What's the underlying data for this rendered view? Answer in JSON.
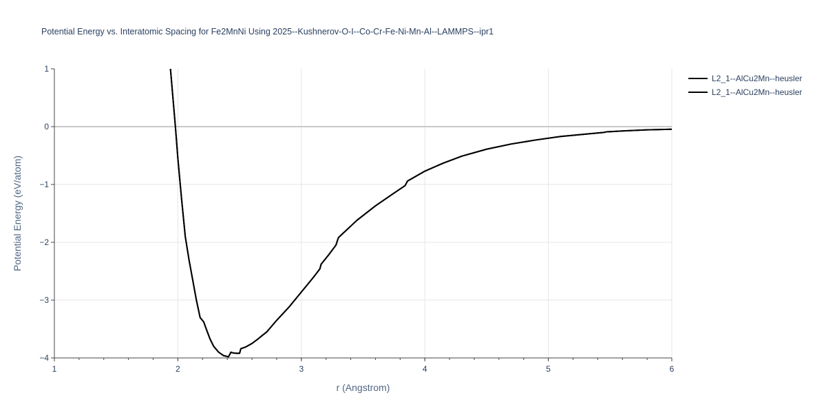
{
  "chart_data": {
    "type": "line",
    "title": "Potential Energy vs. Interatomic Spacing for Fe2MnNi Using 2025--Kushnerov-O-I--Co-Cr-Fe-Ni-Mn-Al--LAMMPS--ipr1",
    "xlabel": "r (Angstrom)",
    "ylabel": "Potential Energy (eV/atom)",
    "xlim": [
      1,
      6
    ],
    "ylim": [
      -4,
      1
    ],
    "x_ticks": [
      "1",
      "2",
      "3",
      "4",
      "5",
      "6"
    ],
    "y_ticks": [
      "1",
      "0",
      "−1",
      "−2",
      "−3",
      "−4"
    ],
    "grid": true,
    "legend_position": "top-right",
    "colors": {
      "line": "#000000",
      "grid": "#e5e5e5",
      "zeroline": "#c8c8c8",
      "axis_text": "#2a3f5f"
    },
    "series": [
      {
        "name": "L2_1--AlCu2Mn--heusler",
        "x": [
          1.94,
          1.96,
          1.98,
          2.0,
          2.03,
          2.06,
          2.09,
          2.12,
          2.15,
          2.18,
          2.21,
          2.23,
          2.26,
          2.29,
          2.33,
          2.37,
          2.41,
          2.43,
          2.44,
          2.47,
          2.5,
          2.51,
          2.55,
          2.6,
          2.65,
          2.69,
          2.72,
          2.74,
          2.8,
          2.9,
          3.0,
          3.1,
          3.15,
          3.16,
          3.22,
          3.28,
          3.3,
          3.45,
          3.6,
          3.75,
          3.84,
          3.86,
          4.0,
          4.15,
          4.3,
          4.5,
          4.7,
          4.9,
          5.1,
          5.3,
          5.45,
          5.47,
          5.6,
          5.8,
          6.0
        ],
        "y": [
          1.0,
          0.5,
          0.0,
          -0.55,
          -1.25,
          -1.9,
          -2.3,
          -2.65,
          -3.0,
          -3.3,
          -3.38,
          -3.5,
          -3.67,
          -3.8,
          -3.9,
          -3.96,
          -3.98,
          -3.9,
          -3.91,
          -3.92,
          -3.92,
          -3.84,
          -3.81,
          -3.75,
          -3.67,
          -3.6,
          -3.55,
          -3.5,
          -3.35,
          -3.12,
          -2.86,
          -2.6,
          -2.46,
          -2.38,
          -2.22,
          -2.05,
          -1.92,
          -1.62,
          -1.37,
          -1.15,
          -1.02,
          -0.94,
          -0.77,
          -0.63,
          -0.51,
          -0.39,
          -0.3,
          -0.23,
          -0.17,
          -0.13,
          -0.1,
          -0.09,
          -0.075,
          -0.055,
          -0.045
        ]
      },
      {
        "name": "L2_1--AlCu2Mn--heusler",
        "x": [
          1.94,
          1.96,
          1.98,
          2.0,
          2.03,
          2.06,
          2.09,
          2.12,
          2.15,
          2.18,
          2.21,
          2.23,
          2.26,
          2.29,
          2.33,
          2.37,
          2.41,
          2.43,
          2.44,
          2.47,
          2.5,
          2.51,
          2.55,
          2.6,
          2.65,
          2.69,
          2.72,
          2.74,
          2.8,
          2.9,
          3.0,
          3.1,
          3.15,
          3.16,
          3.22,
          3.28,
          3.3,
          3.45,
          3.6,
          3.75,
          3.84,
          3.86,
          4.0,
          4.15,
          4.3,
          4.5,
          4.7,
          4.9,
          5.1,
          5.3,
          5.45,
          5.47,
          5.6,
          5.8,
          6.0
        ],
        "y": [
          1.0,
          0.5,
          0.0,
          -0.55,
          -1.25,
          -1.9,
          -2.3,
          -2.65,
          -3.0,
          -3.3,
          -3.38,
          -3.5,
          -3.67,
          -3.8,
          -3.9,
          -3.96,
          -3.98,
          -3.9,
          -3.91,
          -3.92,
          -3.92,
          -3.84,
          -3.81,
          -3.75,
          -3.67,
          -3.6,
          -3.55,
          -3.5,
          -3.35,
          -3.12,
          -2.86,
          -2.6,
          -2.46,
          -2.38,
          -2.22,
          -2.05,
          -1.92,
          -1.62,
          -1.37,
          -1.15,
          -1.02,
          -0.94,
          -0.77,
          -0.63,
          -0.51,
          -0.39,
          -0.3,
          -0.23,
          -0.17,
          -0.13,
          -0.1,
          -0.09,
          -0.075,
          -0.055,
          -0.045
        ]
      }
    ]
  }
}
